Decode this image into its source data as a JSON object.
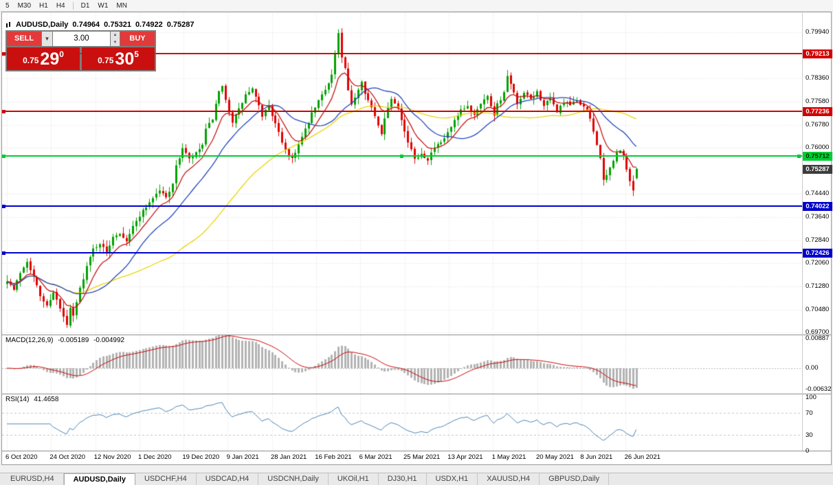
{
  "toolbar": {
    "groups": [
      [
        "5",
        "M30",
        "H1",
        "H4"
      ],
      [
        "D1",
        "W1",
        "MN"
      ]
    ]
  },
  "chart_header": {
    "symbol_period": "AUDUSD,Daily",
    "open": "0.74964",
    "high": "0.75321",
    "low": "0.74922",
    "close": "0.75287"
  },
  "trade_panel": {
    "sell_label": "SELL",
    "buy_label": "BUY",
    "volume": "3.00",
    "sell_price": {
      "prefix": "0.75",
      "big": "29",
      "sup": "0"
    },
    "buy_price": {
      "prefix": "0.75",
      "big": "30",
      "sup": "5"
    },
    "price_bg": "#ca0f0f",
    "button_bg": "#e23a3a"
  },
  "price_axis": {
    "ticks": [
      "0.79940",
      "0.78360",
      "0.77580",
      "0.76780",
      "0.76000",
      "0.74440",
      "0.73640",
      "0.72840",
      "0.72060",
      "0.71280",
      "0.70480",
      "0.69700"
    ],
    "current": {
      "label": "0.75287",
      "value": 0.75287,
      "bg": "#3c3c3c",
      "fg": "#ffffff"
    }
  },
  "levels": [
    {
      "value": 0.79213,
      "label": "0.79213",
      "color": "#d40000",
      "text_color": "#ffffff",
      "selected": false
    },
    {
      "value": 0.77236,
      "label": "0.77236",
      "color": "#d40000",
      "text_color": "#ffffff",
      "selected": false
    },
    {
      "value": 0.75712,
      "label": "0.75712",
      "color": "#00cc33",
      "text_color": "#003300",
      "selected": true
    },
    {
      "value": 0.74022,
      "label": "0.74022",
      "color": "#0000cc",
      "text_color": "#ffffff",
      "selected": false
    },
    {
      "value": 0.72426,
      "label": "0.72426",
      "color": "#0000cc",
      "text_color": "#ffffff",
      "selected": false
    }
  ],
  "macd_panel": {
    "title": "MACD(12,26,9)",
    "value1": "-0.005189",
    "value2": "-0.004992",
    "ticks": [
      "0.00887",
      "0.00",
      "-0.00632"
    ],
    "histogram_color": "#b3b3b3",
    "signal_color": "#cc0000"
  },
  "rsi_panel": {
    "title": "RSI(14)",
    "value": "41.4658",
    "ticks": [
      "100",
      "70",
      "30",
      "0"
    ],
    "levels": [
      70,
      30
    ],
    "line_color": "#4682b4"
  },
  "date_axis": {
    "labels": [
      "6 Oct 2020",
      "24 Oct 2020",
      "12 Nov 2020",
      "1 Dec 2020",
      "19 Dec 2020",
      "9 Jan 2021",
      "28 Jan 2021",
      "16 Feb 2021",
      "6 Mar 2021",
      "25 Mar 2021",
      "13 Apr 2021",
      "1 May 2021",
      "20 May 2021",
      "8 Jun 2021",
      "26 Jun 2021"
    ]
  },
  "tabs": {
    "items": [
      "EURUSD,H4",
      "AUDUSD,Daily",
      "USDCHF,H4",
      "USDCAD,H4",
      "USDCNH,Daily",
      "UKOil,H1",
      "DJ30,H1",
      "USDX,H1",
      "XAUUSD,H4",
      "GBPUSD,Daily"
    ],
    "active": "AUDUSD,Daily"
  },
  "chart_data": {
    "type": "candlestick",
    "symbol": "AUDUSD",
    "period": "Daily",
    "x_range": [
      "6 Oct 2020",
      "26 Jun 2021"
    ],
    "visible_price_range": [
      0.6963,
      0.806
    ],
    "candle_count": 191,
    "noise_seed": 7,
    "clamp_high": 0.8008,
    "clamp_low": 0.6986,
    "up_color": "#00a000",
    "down_color": "#e00000",
    "last_candle": {
      "open": 0.74964,
      "high": 0.75321,
      "low": 0.74922,
      "close": 0.75287
    },
    "moving_averages": [
      {
        "name": "ma-slow",
        "period": 50,
        "type": "sma",
        "color": "#ead400"
      },
      {
        "name": "ma-medium",
        "period": 20,
        "type": "sma",
        "color": "#2244bb"
      },
      {
        "name": "ma-fast",
        "period": 9,
        "type": "ema",
        "color": "#c41212"
      }
    ],
    "indicators": [
      {
        "name": "MACD",
        "params": [
          12,
          26,
          9
        ],
        "last_values": [
          -0.005189,
          -0.004992
        ]
      },
      {
        "name": "RSI",
        "params": [
          14
        ],
        "last_value": 41.4658
      }
    ],
    "close_anchors": [
      [
        0,
        0.715
      ],
      [
        2,
        0.7115
      ],
      [
        4,
        0.7175
      ],
      [
        6,
        0.7215
      ],
      [
        8,
        0.716
      ],
      [
        10,
        0.7095
      ],
      [
        12,
        0.706
      ],
      [
        14,
        0.711
      ],
      [
        16,
        0.705
      ],
      [
        18,
        0.6995
      ],
      [
        19,
        0.705
      ],
      [
        20,
        0.7025
      ],
      [
        22,
        0.712
      ],
      [
        24,
        0.7195
      ],
      [
        26,
        0.7255
      ],
      [
        28,
        0.7275
      ],
      [
        30,
        0.724
      ],
      [
        32,
        0.73
      ],
      [
        34,
        0.731
      ],
      [
        36,
        0.7285
      ],
      [
        38,
        0.733
      ],
      [
        40,
        0.737
      ],
      [
        42,
        0.74
      ],
      [
        44,
        0.743
      ],
      [
        46,
        0.7455
      ],
      [
        48,
        0.743
      ],
      [
        50,
        0.748
      ],
      [
        51,
        0.7535
      ],
      [
        53,
        0.76
      ],
      [
        55,
        0.756
      ],
      [
        57,
        0.758
      ],
      [
        59,
        0.761
      ],
      [
        60,
        0.766
      ],
      [
        62,
        0.77
      ],
      [
        64,
        0.779
      ],
      [
        65,
        0.7805
      ],
      [
        66,
        0.776
      ],
      [
        68,
        0.769
      ],
      [
        70,
        0.773
      ],
      [
        72,
        0.778
      ],
      [
        74,
        0.78
      ],
      [
        75,
        0.777
      ],
      [
        77,
        0.771
      ],
      [
        79,
        0.7745
      ],
      [
        81,
        0.768
      ],
      [
        83,
        0.762
      ],
      [
        85,
        0.7575
      ],
      [
        86,
        0.7565
      ],
      [
        88,
        0.761
      ],
      [
        90,
        0.766
      ],
      [
        92,
        0.7715
      ],
      [
        94,
        0.776
      ],
      [
        96,
        0.78
      ],
      [
        98,
        0.785
      ],
      [
        100,
        0.799
      ],
      [
        101,
        0.7905
      ],
      [
        102,
        0.787
      ],
      [
        103,
        0.779
      ],
      [
        104,
        0.7745
      ],
      [
        105,
        0.7775
      ],
      [
        106,
        0.78
      ],
      [
        107,
        0.783
      ],
      [
        108,
        0.779
      ],
      [
        110,
        0.7735
      ],
      [
        112,
        0.7675
      ],
      [
        113,
        0.765
      ],
      [
        114,
        0.7705
      ],
      [
        115,
        0.7735
      ],
      [
        116,
        0.777
      ],
      [
        118,
        0.774
      ],
      [
        119,
        0.77
      ],
      [
        120,
        0.7655
      ],
      [
        121,
        0.762
      ],
      [
        122,
        0.759
      ],
      [
        123,
        0.7565
      ],
      [
        125,
        0.758
      ],
      [
        127,
        0.7562
      ],
      [
        129,
        0.76
      ],
      [
        131,
        0.7615
      ],
      [
        133,
        0.765
      ],
      [
        135,
        0.769
      ],
      [
        137,
        0.7725
      ],
      [
        139,
        0.774
      ],
      [
        141,
        0.7715
      ],
      [
        143,
        0.7755
      ],
      [
        145,
        0.7775
      ],
      [
        146,
        0.7745
      ],
      [
        147,
        0.7715
      ],
      [
        148,
        0.775
      ],
      [
        150,
        0.7785
      ],
      [
        151,
        0.7845
      ],
      [
        152,
        0.7815
      ],
      [
        153,
        0.7785
      ],
      [
        154,
        0.7745
      ],
      [
        156,
        0.7785
      ],
      [
        158,
        0.7765
      ],
      [
        160,
        0.779
      ],
      [
        162,
        0.7745
      ],
      [
        164,
        0.7765
      ],
      [
        166,
        0.7725
      ],
      [
        168,
        0.7755
      ],
      [
        170,
        0.7745
      ],
      [
        172,
        0.7762
      ],
      [
        174,
        0.774
      ],
      [
        176,
        0.77
      ],
      [
        177,
        0.7655
      ],
      [
        178,
        0.7615
      ],
      [
        179,
        0.7565
      ],
      [
        180,
        0.7485
      ],
      [
        181,
        0.7505
      ],
      [
        182,
        0.753
      ],
      [
        183,
        0.756
      ],
      [
        184,
        0.758
      ],
      [
        185,
        0.759
      ],
      [
        186,
        0.757
      ],
      [
        187,
        0.7525
      ],
      [
        188,
        0.749
      ],
      [
        189,
        0.7455
      ],
      [
        190,
        0.75287
      ]
    ]
  }
}
